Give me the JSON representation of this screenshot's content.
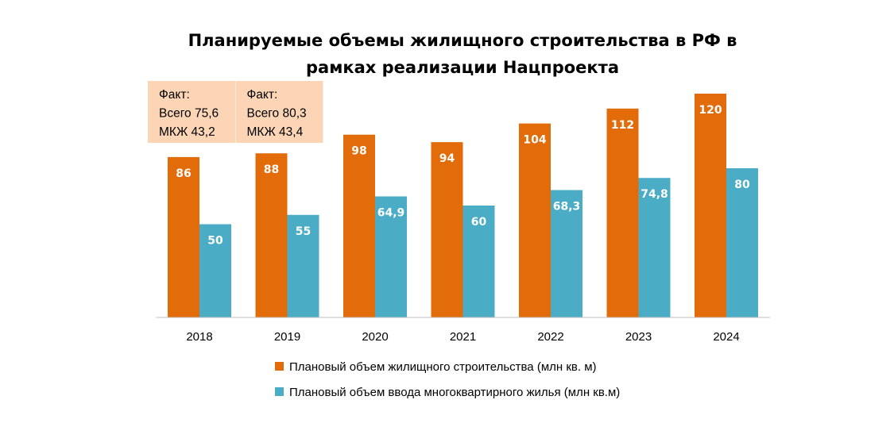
{
  "chart_data": {
    "type": "bar",
    "title": "Планируемые объемы жилищного строительства в РФ в рамках реализации Нацпроекта",
    "title_lines": [
      "Планируемые объемы жилищного строительства в РФ в",
      "рамках реализации Нацпроекта"
    ],
    "categories": [
      "2018",
      "2019",
      "2020",
      "2021",
      "2022",
      "2023",
      "2024"
    ],
    "series": [
      {
        "name": "Плановый объем жилищного строительства (млн кв. м)",
        "color": "#E36C0A",
        "values": [
          86,
          88,
          98,
          94,
          104,
          112,
          120
        ],
        "labels": [
          "86",
          "88",
          "98",
          "94",
          "104",
          "112",
          "120"
        ]
      },
      {
        "name": "Плановый объем ввода многоквартирного жилья (млн кв.м)",
        "color": "#4BACC6",
        "values": [
          50,
          55,
          64.9,
          60,
          68.3,
          74.8,
          80
        ],
        "labels": [
          "50",
          "55",
          "64,9",
          "60",
          "68,3",
          "74,8",
          "80"
        ]
      }
    ],
    "ylim": [
      0,
      120
    ],
    "grid": false,
    "legend_position": "bottom",
    "annotations": [
      {
        "category": "2018",
        "lines": [
          "Факт:",
          "Всего 75,6",
          "МКЖ 43,2"
        ],
        "fill": "#FBD5B5"
      },
      {
        "category": "2019",
        "lines": [
          "Факт:",
          "Всего 80,3",
          "МКЖ 43,4"
        ],
        "fill": "#FBD5B5"
      }
    ]
  }
}
